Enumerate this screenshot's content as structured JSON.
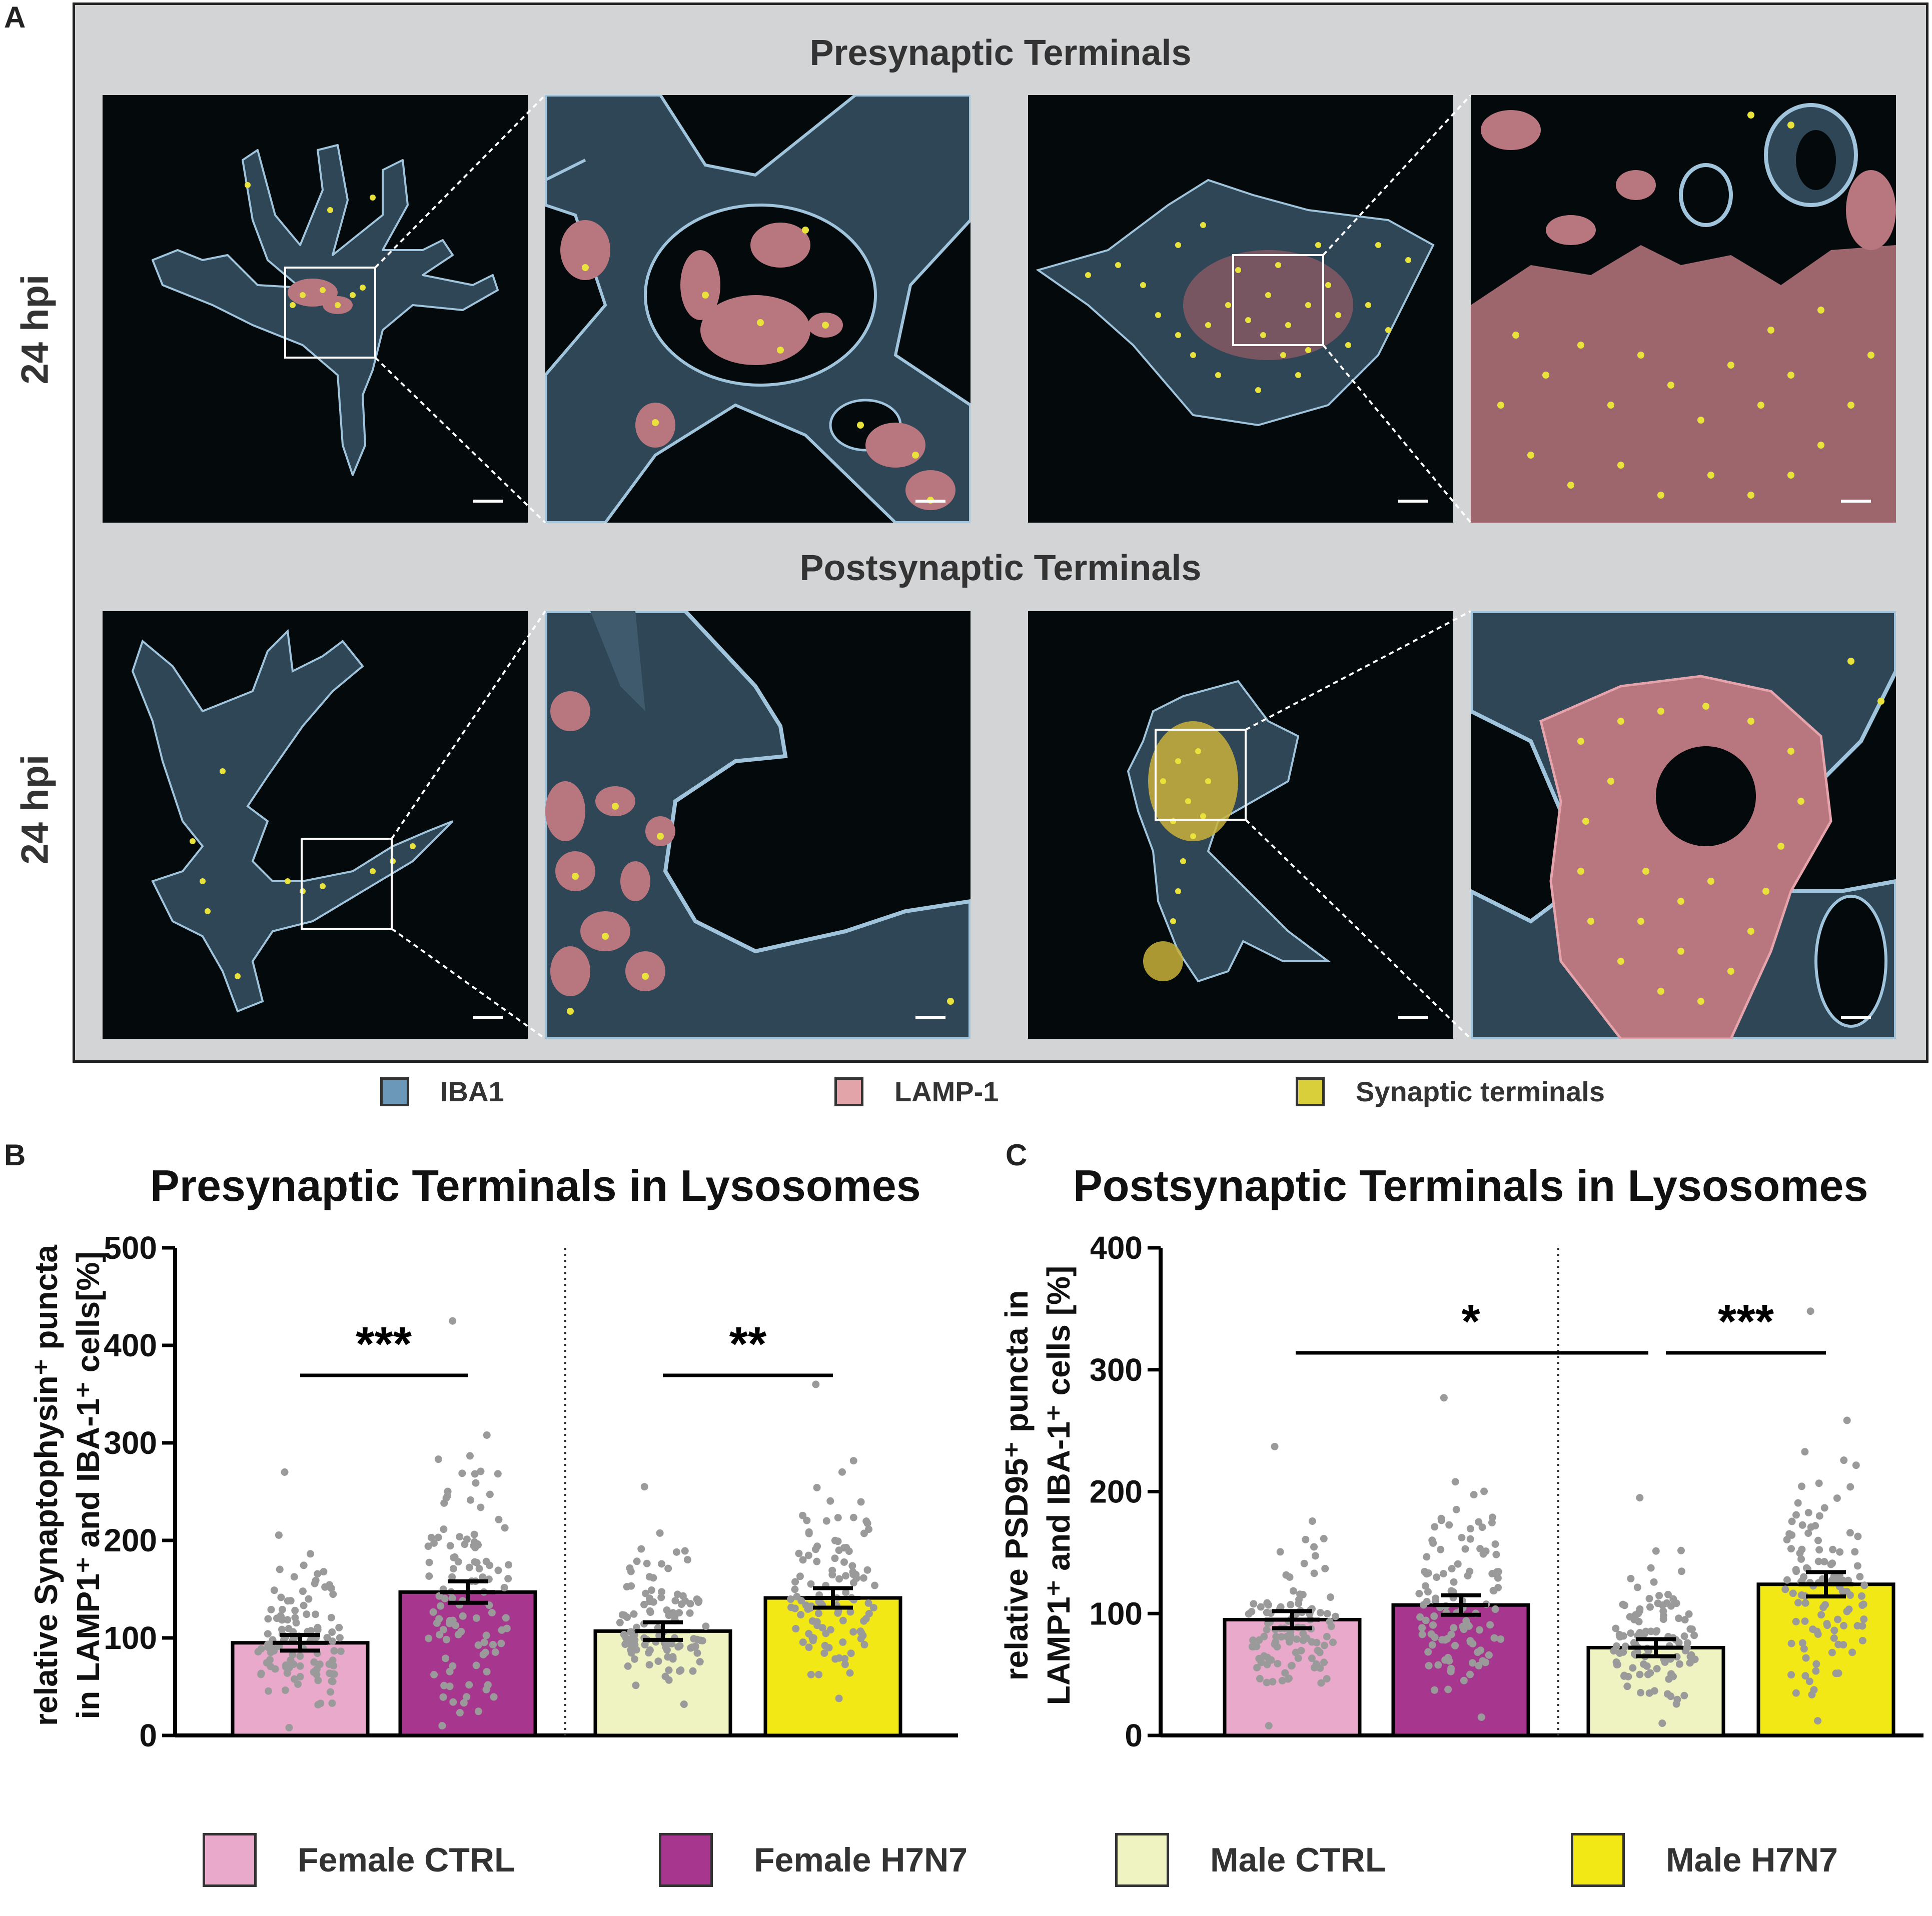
{
  "panels": {
    "a": "A",
    "b": "B",
    "c": "C"
  },
  "panel_a": {
    "row1_title": "Presynaptic Terminals",
    "row2_title": "Postsynaptic Terminals",
    "row1_time": "24 hpi",
    "row2_time": "24 hpi",
    "legend": [
      {
        "label": "IBA1",
        "color": "#6b97b8"
      },
      {
        "label": "LAMP-1",
        "color": "#e3a4a9"
      },
      {
        "label": "Synaptic terminals",
        "color": "#d8cf3a"
      }
    ],
    "colors": {
      "background": "#04090b",
      "iba1": "#2e4656",
      "iba1_edge": "#9fc4dc",
      "lamp1": "#b8767e",
      "terminal": "#e8e23a"
    }
  },
  "panel_b": {
    "title": "Presynaptic Terminals in Lysosomes",
    "ylabel_line1": "relative Synaptophysin⁺ puncta",
    "ylabel_line2": "in LAMP1⁺ and IBA-1⁺ cells[%]"
  },
  "panel_c": {
    "title": "Postsynaptic Terminals in Lysosomes",
    "ylabel_line1": "relative PSD95⁺ puncta in",
    "ylabel_line2": "LAMP1⁺ and IBA-1⁺ cells [%]"
  },
  "groups_legend": [
    {
      "label": "Female CTRL",
      "color": "#e9a9cb"
    },
    {
      "label": "Female H7N7",
      "color": "#a7378e"
    },
    {
      "label": "Male CTRL",
      "color": "#eef3c1"
    },
    {
      "label": "Male H7N7",
      "color": "#f2e816"
    }
  ],
  "chart_data": [
    {
      "type": "bar",
      "title": "Presynaptic Terminals in Lysosomes",
      "ylabel": "relative Synaptophysin⁺ puncta in LAMP1⁺ and IBA-1⁺ cells[%]",
      "categories": [
        "Female CTRL",
        "Female H7N7",
        "Male CTRL",
        "Male H7N7"
      ],
      "values": [
        95,
        147,
        107,
        141
      ],
      "sem": [
        8,
        11,
        9,
        10
      ],
      "points_max": [
        270,
        425,
        255,
        360
      ],
      "points_min": [
        8,
        10,
        32,
        38
      ],
      "ylim": [
        0,
        500
      ],
      "yticks": [
        0,
        100,
        200,
        300,
        400,
        500
      ],
      "colors": [
        "#e9a9cb",
        "#a7378e",
        "#eef3c1",
        "#f2e816"
      ],
      "significance": [
        {
          "from": 0,
          "to": 1,
          "label": "***"
        },
        {
          "from": 2,
          "to": 3,
          "label": "**"
        }
      ]
    },
    {
      "type": "bar",
      "title": "Postsynaptic Terminals in Lysosomes",
      "ylabel": "relative PSD95⁺ puncta in LAMP1⁺ and IBA-1⁺ cells [%]",
      "categories": [
        "Female CTRL",
        "Female H7N7",
        "Male CTRL",
        "Male H7N7"
      ],
      "values": [
        95,
        107,
        72,
        124
      ],
      "sem": [
        7,
        8,
        7,
        10
      ],
      "points_max": [
        237,
        277,
        195,
        348
      ],
      "points_min": [
        8,
        15,
        10,
        12
      ],
      "ylim": [
        0,
        400
      ],
      "yticks": [
        0,
        100,
        200,
        300,
        400
      ],
      "colors": [
        "#e9a9cb",
        "#a7378e",
        "#eef3c1",
        "#f2e816"
      ],
      "significance": [
        {
          "from": 0,
          "to": 2,
          "label": "*"
        },
        {
          "from": 2,
          "to": 3,
          "label": "***"
        }
      ]
    }
  ]
}
